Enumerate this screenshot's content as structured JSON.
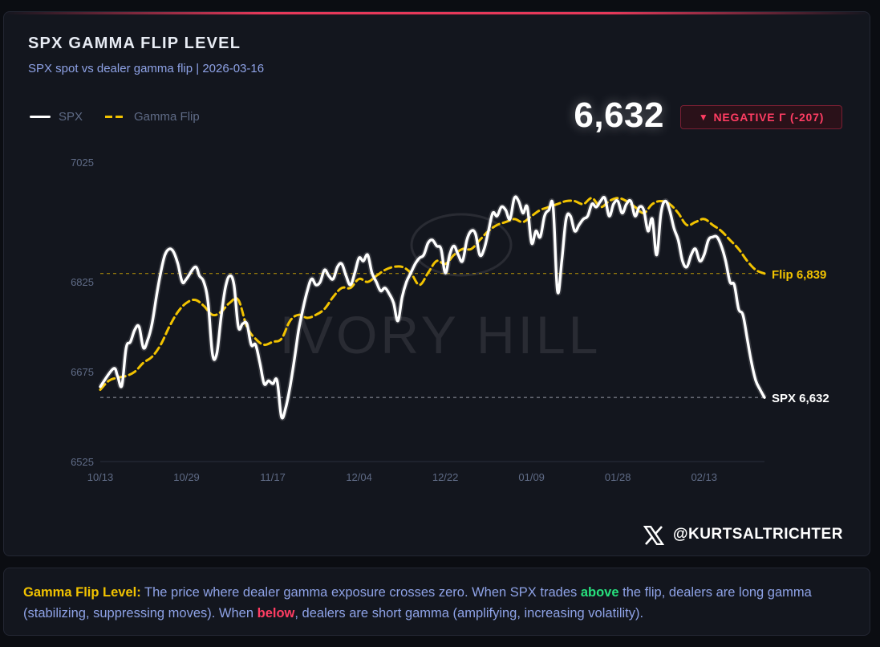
{
  "header": {
    "title": "SPX GAMMA FLIP LEVEL",
    "subtitle": "SPX spot vs dealer gamma flip | 2026-03-16"
  },
  "legend": {
    "spx_label": "SPX",
    "flip_label": "Gamma Flip"
  },
  "headline": {
    "value": "6,632",
    "badge": "NEGATIVE Γ (-207)",
    "badge_icon": "triangle-down-icon"
  },
  "watermark": {
    "text": "IVORY HILL"
  },
  "footer": {
    "handle": "@KURTSALTRICHTER"
  },
  "info": {
    "lead": "Gamma Flip Level:",
    "part1": " The price where dealer gamma exposure crosses zero. When SPX trades ",
    "above": "above",
    "part2": " the flip, dealers are long gamma (stabilizing, suppressing moves). When ",
    "below": "below",
    "part3": ", dealers are short gamma (amplifying, increasing volatility)."
  },
  "colors": {
    "spx": "#ffffff",
    "flip": "#f2c300",
    "negative": "#ff3d63",
    "positive": "#27e07d",
    "accent": "#8ea2e6"
  },
  "chart_data": {
    "type": "line",
    "title": "SPX GAMMA FLIP LEVEL",
    "ylim": [
      6525,
      7025
    ],
    "yticks": [
      7025,
      6825,
      6675,
      6525
    ],
    "xlim": [
      0,
      154
    ],
    "xticks": [
      {
        "x": 0,
        "label": "10/13"
      },
      {
        "x": 20,
        "label": "10/29"
      },
      {
        "x": 40,
        "label": "11/17"
      },
      {
        "x": 60,
        "label": "12/04"
      },
      {
        "x": 80,
        "label": "12/22"
      },
      {
        "x": 100,
        "label": "01/09"
      },
      {
        "x": 120,
        "label": "01/28"
      },
      {
        "x": 140,
        "label": "02/13"
      }
    ],
    "series": [
      {
        "name": "SPX",
        "style": "solid",
        "x": [
          0,
          3,
          4,
          5,
          6,
          7,
          8,
          9,
          10,
          11,
          12,
          13,
          14,
          15,
          16,
          17,
          18,
          19,
          20,
          22,
          23,
          24,
          25,
          26,
          27,
          28,
          29,
          30,
          31,
          32,
          33,
          34,
          35,
          36,
          37,
          38,
          39,
          40,
          41,
          42,
          43,
          44,
          45,
          46,
          47,
          48,
          49,
          50,
          51,
          52,
          53,
          54,
          55,
          56,
          57,
          58,
          59,
          60,
          61,
          62,
          63,
          64,
          65,
          66,
          67,
          68,
          69,
          70,
          71,
          72,
          73,
          74,
          75,
          76,
          77,
          78,
          79,
          80,
          81,
          82,
          83,
          84,
          85,
          86,
          87,
          88,
          89,
          90,
          91,
          92,
          93,
          94,
          95,
          96,
          97,
          98,
          99,
          100,
          101,
          102,
          103,
          104,
          105,
          106,
          107,
          108,
          109,
          110,
          111,
          112,
          113,
          114,
          115,
          116,
          117,
          118,
          119,
          120,
          121,
          122,
          123,
          124,
          125,
          126,
          127,
          128,
          129,
          130,
          131,
          132,
          133,
          134,
          135,
          136,
          137,
          138,
          139,
          140,
          141,
          142,
          143,
          144,
          145,
          146,
          147,
          148,
          149,
          150,
          151,
          152,
          153,
          154
        ],
        "values": [
          6650,
          6680,
          6668,
          6652,
          6715,
          6725,
          6745,
          6750,
          6715,
          6728,
          6755,
          6800,
          6840,
          6870,
          6880,
          6875,
          6855,
          6825,
          6830,
          6850,
          6835,
          6825,
          6790,
          6705,
          6705,
          6765,
          6815,
          6835,
          6820,
          6750,
          6755,
          6755,
          6720,
          6720,
          6690,
          6655,
          6660,
          6655,
          6660,
          6600,
          6615,
          6650,
          6695,
          6745,
          6780,
          6810,
          6830,
          6820,
          6825,
          6845,
          6835,
          6830,
          6850,
          6855,
          6835,
          6820,
          6840,
          6865,
          6860,
          6870,
          6840,
          6825,
          6810,
          6815,
          6805,
          6790,
          6760,
          6800,
          6825,
          6840,
          6855,
          6865,
          6870,
          6890,
          6895,
          6885,
          6880,
          6840,
          6870,
          6885,
          6870,
          6860,
          6895,
          6910,
          6905,
          6870,
          6880,
          6910,
          6940,
          6935,
          6950,
          6945,
          6930,
          6965,
          6960,
          6940,
          6950,
          6890,
          6910,
          6900,
          6935,
          6945,
          6950,
          6810,
          6860,
          6930,
          6935,
          6910,
          6920,
          6930,
          6935,
          6955,
          6950,
          6960,
          6965,
          6935,
          6955,
          6960,
          6940,
          6955,
          6960,
          6935,
          6950,
          6945,
          6910,
          6930,
          6870,
          6940,
          6960,
          6945,
          6915,
          6895,
          6860,
          6850,
          6870,
          6880,
          6860,
          6870,
          6895,
          6900,
          6900,
          6885,
          6860,
          6825,
          6820,
          6780,
          6770,
          6730,
          6690,
          6660,
          6645,
          6632
        ]
      },
      {
        "name": "Gamma Flip",
        "style": "dashed",
        "x": [
          0,
          2,
          4,
          6,
          8,
          10,
          12,
          14,
          16,
          18,
          20,
          22,
          24,
          26,
          28,
          30,
          32,
          34,
          36,
          38,
          40,
          42,
          44,
          46,
          48,
          50,
          52,
          54,
          56,
          58,
          60,
          62,
          64,
          66,
          68,
          70,
          72,
          74,
          76,
          78,
          80,
          82,
          84,
          86,
          88,
          90,
          92,
          94,
          96,
          98,
          100,
          102,
          104,
          106,
          108,
          110,
          112,
          114,
          116,
          118,
          120,
          122,
          124,
          126,
          128,
          130,
          132,
          134,
          136,
          138,
          140,
          142,
          144,
          146,
          148,
          150,
          152,
          154
        ],
        "values": [
          6645,
          6660,
          6665,
          6668,
          6675,
          6690,
          6700,
          6720,
          6750,
          6775,
          6790,
          6795,
          6785,
          6770,
          6775,
          6790,
          6795,
          6750,
          6730,
          6720,
          6725,
          6730,
          6760,
          6770,
          6765,
          6770,
          6780,
          6800,
          6815,
          6815,
          6830,
          6825,
          6835,
          6845,
          6850,
          6850,
          6840,
          6820,
          6840,
          6860,
          6855,
          6870,
          6880,
          6880,
          6895,
          6910,
          6920,
          6925,
          6930,
          6925,
          6935,
          6945,
          6950,
          6955,
          6960,
          6960,
          6955,
          6965,
          6950,
          6960,
          6965,
          6960,
          6950,
          6940,
          6955,
          6960,
          6955,
          6940,
          6920,
          6925,
          6930,
          6920,
          6910,
          6895,
          6880,
          6860,
          6845,
          6839
        ]
      }
    ],
    "reference_lines": [
      {
        "name": "Flip",
        "value": 6839,
        "label": "Flip 6,839"
      },
      {
        "name": "SPX",
        "value": 6632,
        "label": "SPX 6,632"
      }
    ]
  }
}
